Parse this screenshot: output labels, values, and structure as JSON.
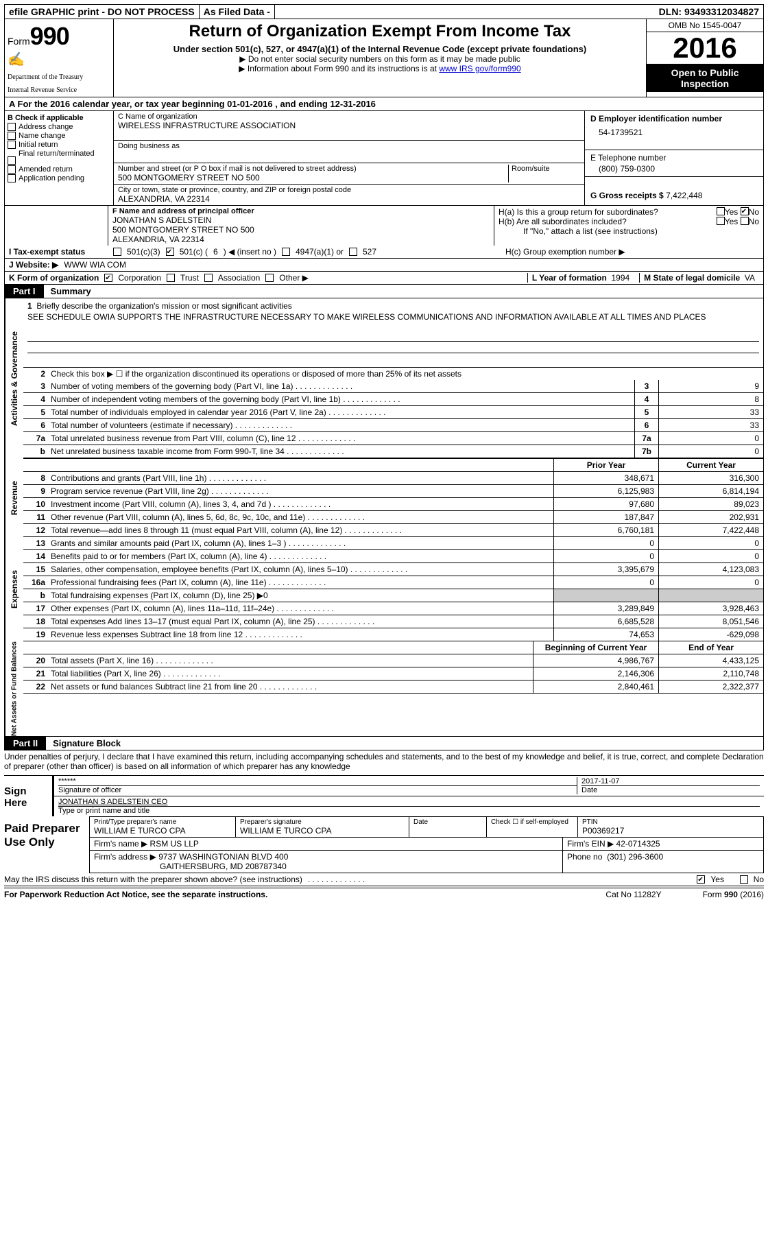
{
  "topbar": {
    "efile": "efile GRAPHIC print - DO NOT PROCESS",
    "asfiled": "As Filed Data -",
    "dln_label": "DLN:",
    "dln": "93493312034827"
  },
  "header": {
    "form_label": "Form",
    "form_num": "990",
    "dept1": "Department of the Treasury",
    "dept2": "Internal Revenue Service",
    "title": "Return of Organization Exempt From Income Tax",
    "subtitle": "Under section 501(c), 527, or 4947(a)(1) of the Internal Revenue Code (except private foundations)",
    "instr1": "▶ Do not enter social security numbers on this form as it may be made public",
    "instr2_pre": "▶ Information about Form 990 and its instructions is at ",
    "instr2_link": "www IRS gov/form990",
    "omb": "OMB No  1545-0047",
    "year": "2016",
    "open1": "Open to Public",
    "open2": "Inspection"
  },
  "rowA": "A   For the 2016 calendar year, or tax year beginning 01-01-2016    , and ending 12-31-2016",
  "colB": {
    "label": "B Check if applicable",
    "items": [
      "Address change",
      "Name change",
      "Initial return",
      "Final return/terminated",
      "Amended return",
      "Application pending"
    ]
  },
  "colC": {
    "name_label": "C Name of organization",
    "name": "WIRELESS INFRASTRUCTURE ASSOCIATION",
    "dba_label": "Doing business as",
    "addr_label": "Number and street (or P O  box if mail is not delivered to street address)",
    "room_label": "Room/suite",
    "addr": "500 MONTGOMERY STREET NO 500",
    "city_label": "City or town, state or province, country, and ZIP or foreign postal code",
    "city": "ALEXANDRIA, VA  22314"
  },
  "colD": {
    "d_label": "D Employer identification number",
    "ein": "54-1739521",
    "e_label": "E Telephone number",
    "phone": "(800) 759-0300",
    "g_label": "G Gross receipts $",
    "gross": "7,422,448"
  },
  "rowF": {
    "label": "F  Name and address of principal officer",
    "name": "JONATHAN S ADELSTEIN",
    "addr1": "500 MONTGOMERY STREET NO 500",
    "addr2": "ALEXANDRIA, VA  22314"
  },
  "rowH": {
    "ha": "H(a)  Is this a group return for subordinates?",
    "hb": "H(b)  Are all subordinates included?",
    "hb_note": "If \"No,\" attach a list  (see instructions)",
    "hc": "H(c)  Group exemption number ▶",
    "yes": "Yes",
    "no": "No"
  },
  "rowI": {
    "label": "I   Tax-exempt status",
    "opt1": "501(c)(3)",
    "opt2_pre": "501(c) (",
    "opt2_num": "6",
    "opt2_post": ") ◀ (insert no )",
    "opt3": "4947(a)(1) or",
    "opt4": "527"
  },
  "rowJ": {
    "label": "J   Website: ▶",
    "value": "WWW WIA COM"
  },
  "rowK": {
    "label": "K Form of organization",
    "corp": "Corporation",
    "trust": "Trust",
    "assoc": "Association",
    "other": "Other ▶"
  },
  "rowLM": {
    "l_label": "L Year of formation",
    "l_val": "1994",
    "m_label": "M State of legal domicile",
    "m_val": "VA"
  },
  "part1": {
    "title_dark": "Part I",
    "title_light": "Summary",
    "q1_label": "1",
    "q1_text": "Briefly describe the organization's mission or most significant activities",
    "q1_mission": "SEE SCHEDULE OWIA SUPPORTS THE INFRASTRUCTURE NECESSARY TO MAKE WIRELESS COMMUNICATIONS AND INFORMATION AVAILABLE AT ALL TIMES AND PLACES",
    "q2": "Check this box ▶ ☐ if the organization discontinued its operations or disposed of more than 25% of its net assets",
    "govLines": [
      {
        "n": "3",
        "d": "Number of voting members of the governing body (Part VI, line 1a)",
        "bn": "3",
        "v": "9"
      },
      {
        "n": "4",
        "d": "Number of independent voting members of the governing body (Part VI, line 1b)",
        "bn": "4",
        "v": "8"
      },
      {
        "n": "5",
        "d": "Total number of individuals employed in calendar year 2016 (Part V, line 2a)",
        "bn": "5",
        "v": "33"
      },
      {
        "n": "6",
        "d": "Total number of volunteers (estimate if necessary)",
        "bn": "6",
        "v": "33"
      },
      {
        "n": "7a",
        "d": "Total unrelated business revenue from Part VIII, column (C), line 12",
        "bn": "7a",
        "v": "0"
      },
      {
        "n": "b",
        "d": "Net unrelated business taxable income from Form 990-T, line 34",
        "bn": "7b",
        "v": "0"
      }
    ],
    "header_prior": "Prior Year",
    "header_current": "Current Year",
    "revLines": [
      {
        "n": "8",
        "d": "Contributions and grants (Part VIII, line 1h)",
        "p": "348,671",
        "c": "316,300"
      },
      {
        "n": "9",
        "d": "Program service revenue (Part VIII, line 2g)",
        "p": "6,125,983",
        "c": "6,814,194"
      },
      {
        "n": "10",
        "d": "Investment income (Part VIII, column (A), lines 3, 4, and 7d )",
        "p": "97,680",
        "c": "89,023"
      },
      {
        "n": "11",
        "d": "Other revenue (Part VIII, column (A), lines 5, 6d, 8c, 9c, 10c, and 11e)",
        "p": "187,847",
        "c": "202,931"
      },
      {
        "n": "12",
        "d": "Total revenue—add lines 8 through 11 (must equal Part VIII, column (A), line 12)",
        "p": "6,760,181",
        "c": "7,422,448"
      }
    ],
    "expLines": [
      {
        "n": "13",
        "d": "Grants and similar amounts paid (Part IX, column (A), lines 1–3 )",
        "p": "0",
        "c": "0"
      },
      {
        "n": "14",
        "d": "Benefits paid to or for members (Part IX, column (A), line 4)",
        "p": "0",
        "c": "0"
      },
      {
        "n": "15",
        "d": "Salaries, other compensation, employee benefits (Part IX, column (A), lines 5–10)",
        "p": "3,395,679",
        "c": "4,123,083"
      },
      {
        "n": "16a",
        "d": "Professional fundraising fees (Part IX, column (A), line 11e)",
        "p": "0",
        "c": "0"
      },
      {
        "n": "b",
        "d": "Total fundraising expenses (Part IX, column (D), line 25) ▶0",
        "p": "",
        "c": "",
        "grey": true
      },
      {
        "n": "17",
        "d": "Other expenses (Part IX, column (A), lines 11a–11d, 11f–24e)",
        "p": "3,289,849",
        "c": "3,928,463"
      },
      {
        "n": "18",
        "d": "Total expenses  Add lines 13–17 (must equal Part IX, column (A), line 25)",
        "p": "6,685,528",
        "c": "8,051,546"
      },
      {
        "n": "19",
        "d": "Revenue less expenses  Subtract line 18 from line 12",
        "p": "74,653",
        "c": "-629,098"
      }
    ],
    "header_begin": "Beginning of Current Year",
    "header_end": "End of Year",
    "netLines": [
      {
        "n": "20",
        "d": "Total assets (Part X, line 16)",
        "p": "4,986,767",
        "c": "4,433,125"
      },
      {
        "n": "21",
        "d": "Total liabilities (Part X, line 26)",
        "p": "2,146,306",
        "c": "2,110,748"
      },
      {
        "n": "22",
        "d": "Net assets or fund balances  Subtract line 21 from line 20",
        "p": "2,840,461",
        "c": "2,322,377"
      }
    ],
    "vtabs": {
      "gov": "Activities & Governance",
      "rev": "Revenue",
      "exp": "Expenses",
      "net": "Net Assets or Fund Balances"
    }
  },
  "part2": {
    "title_dark": "Part II",
    "title_light": "Signature Block",
    "decl": "Under penalties of perjury, I declare that I have examined this return, including accompanying schedules and statements, and to the best of my knowledge and belief, it is true, correct, and complete  Declaration of preparer (other than officer) is based on all information of which preparer has any knowledge",
    "sign_here": "Sign Here",
    "stars": "******",
    "sig_of_officer": "Signature of officer",
    "date_label": "Date",
    "date": "2017-11-07",
    "officer_name": "JONATHAN S ADELSTEIN  CEO",
    "type_name": "Type or print name and title"
  },
  "prep": {
    "title": "Paid Preparer Use Only",
    "r1c1_label": "Print/Type preparer's name",
    "r1c1": "WILLIAM E TURCO CPA",
    "r1c2_label": "Preparer's signature",
    "r1c2": "WILLIAM E TURCO CPA",
    "r1c3_label": "Date",
    "r1c4_label": "Check ☐ if self-employed",
    "r1c5_label": "PTIN",
    "r1c5": "P00369217",
    "r2_label": "Firm's name    ▶",
    "r2": "RSM US LLP",
    "r2b_label": "Firm's EIN ▶",
    "r2b": "42-0714325",
    "r3_label": "Firm's address ▶",
    "r3a": "9737 WASHINGTONIAN BLVD 400",
    "r3b": "GAITHERSBURG, MD  208787340",
    "r3c_label": "Phone no",
    "r3c": "(301) 296-3600"
  },
  "footer": {
    "discuss": "May the IRS discuss this return with the preparer shown above? (see instructions)",
    "yes": "Yes",
    "no": "No",
    "paperwork": "For Paperwork Reduction Act Notice, see the separate instructions.",
    "cat": "Cat  No  11282Y",
    "form": "Form 990 (2016)"
  }
}
